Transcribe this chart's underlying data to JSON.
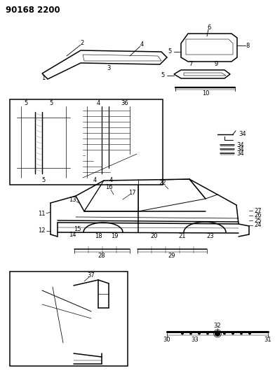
{
  "title": "90168 2200",
  "bg_color": "#ffffff"
}
